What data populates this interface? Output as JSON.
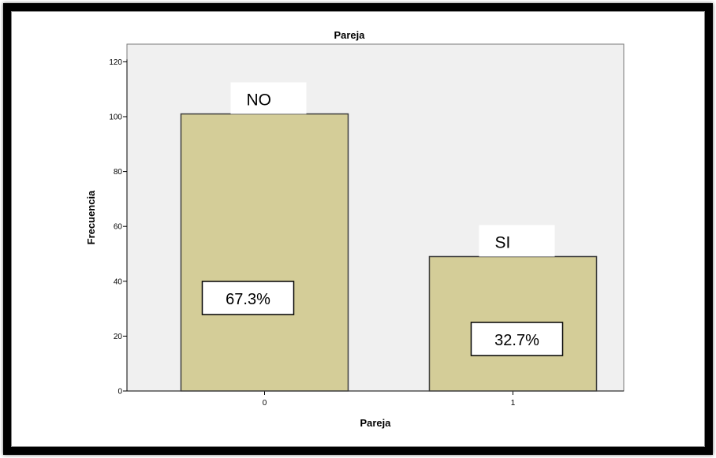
{
  "chart_data": {
    "type": "bar",
    "title": "Pareja",
    "xlabel": "Pareja",
    "ylabel": "Frecuencia",
    "categories": [
      "0",
      "1"
    ],
    "values": [
      101,
      49
    ],
    "ylim": [
      0,
      120
    ],
    "yticks": [
      0,
      20,
      40,
      60,
      80,
      100,
      120
    ],
    "grid": false,
    "annotations": [
      {
        "category": "0",
        "name_label": "NO",
        "percent_label": "67.3%"
      },
      {
        "category": "1",
        "name_label": "SI",
        "percent_label": "32.7%"
      }
    ],
    "colors": {
      "bar": "#d4cd98",
      "bar_stroke": "#3a3a3a",
      "plot_background": "#f0f0f0",
      "frame": "#000000"
    }
  }
}
